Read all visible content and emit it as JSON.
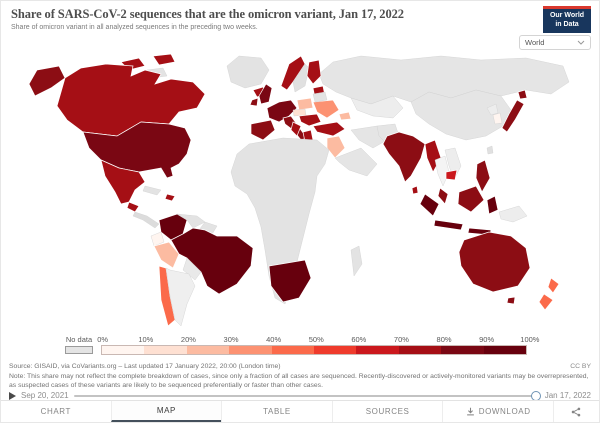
{
  "header": {
    "title": "Share of SARS-CoV-2 sequences that are the omicron variant, Jan 17, 2022",
    "subtitle": "Share of omicron variant in all analyzed sequences in the preceding two weeks.",
    "logo": {
      "line1": "Our World",
      "line2": "in Data",
      "bg_color": "#18365d",
      "stripe_color": "#d9382e"
    },
    "region_selector": {
      "value": "World"
    }
  },
  "map": {
    "no_data_label": "No data",
    "no_data_color": "#e4e4e4",
    "legend": {
      "ticks": [
        "0%",
        "10%",
        "20%",
        "30%",
        "40%",
        "50%",
        "60%",
        "70%",
        "80%",
        "90%",
        "100%"
      ],
      "colors": [
        "#fff5f0",
        "#fee0d2",
        "#fcbba1",
        "#fc9272",
        "#fb6a4a",
        "#ef3b2c",
        "#cb181d",
        "#a50f15",
        "#7a0713",
        "#67000d"
      ]
    },
    "regions": {
      "greenland": "#e3e3e3",
      "arctic_island_a": "#a50f15",
      "arctic_island_b": "#a50f15",
      "arctic_island_c": "#e3e3e3",
      "iceland": "#a50f15",
      "alaska": "#8c0d14",
      "canada": "#a50f15",
      "usa": "#7a0713",
      "mexico": "#a50f15",
      "guatemala": "#a50f15",
      "central_america": "#dcdcdc",
      "cuba": "#e3e3e3",
      "hispaniola": "#a50f15",
      "colombia": "#67000d",
      "venezuela": "#e3e3e3",
      "guyanas": "#e3e3e3",
      "ecuador": "#fff5f0",
      "peru": "#fcbba1",
      "brazil": "#67000d",
      "bolivia": "#e9e9e9",
      "chile": "#fb6a4a",
      "argentina": "#efefef",
      "uk": "#7a0713",
      "ireland": "#8c0d14",
      "norway": "#a50f15",
      "sweden": "#e0e0e0",
      "finland": "#a50f15",
      "baltics": "#a50f15",
      "western_europe": "#7a0713",
      "iberia": "#8c0d14",
      "italy": "#8c0d14",
      "poland": "#fcbba1",
      "czechia": "#fee0d2",
      "hungary_romania": "#a50f15",
      "balkans": "#a50f15",
      "greece": "#a50f15",
      "ukraine": "#fc9272",
      "belarus": "#e3e3e3",
      "russia": "#e5e5e5",
      "kazakhstan": "#ededed",
      "turkey": "#a50f15",
      "caucasus": "#fcbba1",
      "levant": "#fcbba1",
      "saudi_arabia": "#e5e5e5",
      "iran": "#e5e5e5",
      "afghanistan": "#e5e5e5",
      "india": "#8c0d14",
      "sri_lanka": "#a50f15",
      "china": "#e5e5e5",
      "myanmar": "#a50f15",
      "thailand": "#f4f4f4",
      "vietnam": "#ededed",
      "cambodia": "#cb181d",
      "malay_peninsula": "#8c0d14",
      "sumatra": "#67000d",
      "java": "#67000d",
      "borneo": "#8c0d14",
      "sulawesi": "#67000d",
      "lesser_sunda": "#67000d",
      "philippines": "#8c0d14",
      "taiwan": "#e0e0e0",
      "north_korea": "#ededed",
      "south_korea": "#fff5f0",
      "japan": "#8c0d14",
      "hokkaido": "#8c0d14",
      "papua_new_guinea": "#ededed",
      "africa": "#e3e3e3",
      "south_africa": "#67000d",
      "madagascar": "#e3e3e3",
      "australia": "#8c0d14",
      "tasmania": "#8c0d14",
      "new_zealand_north": "#fb6a4a",
      "new_zealand_south": "#fb6a4a"
    }
  },
  "footer": {
    "source": "Source: GISAID, via CoVariants.org – Last updated 17 January 2022, 20:00 (London time)",
    "license": "CC BY",
    "note": "Note: This share may not reflect the complete breakdown of cases, since only a fraction of all cases are sequenced. Recently-discovered or actively-monitored variants may be overrepresented, as suspected cases of these variants are likely to be sequenced preferentially or faster than other cases."
  },
  "timeline": {
    "start_date": "Sep 20, 2021",
    "end_date": "Jan 17, 2022",
    "handle_color": "#6e93b4"
  },
  "tabs": [
    {
      "label": "CHART",
      "active": false
    },
    {
      "label": "MAP",
      "active": true
    },
    {
      "label": "TABLE",
      "active": false
    },
    {
      "label": "SOURCES",
      "active": false
    },
    {
      "label": "DOWNLOAD",
      "active": false
    }
  ]
}
